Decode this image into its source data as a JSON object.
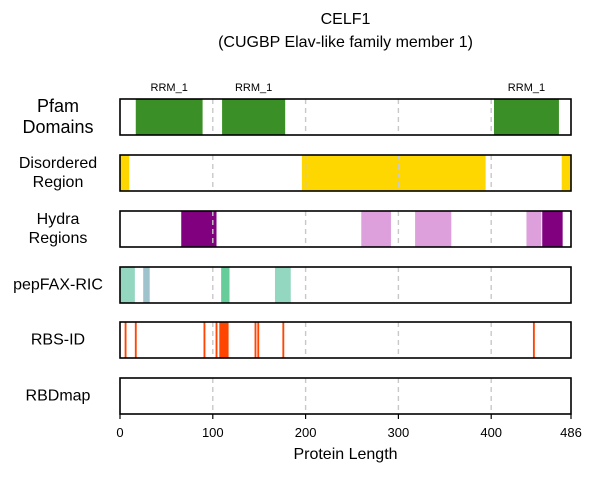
{
  "chart_data": {
    "type": "bar",
    "title": "CELF1",
    "subtitle": "(CUGBP Elav-like family member 1)",
    "xlabel": "Protein Length",
    "xlim": [
      0,
      486
    ],
    "xticks": [
      0,
      100,
      200,
      300,
      400,
      486
    ],
    "xtick_labels": [
      "0",
      "100",
      "200",
      "300",
      "400",
      "486"
    ],
    "grid": "vertical dashed at 100, 200, 300, 400",
    "tracks": [
      {
        "label_lines": [
          "Pfam",
          "Domains"
        ],
        "segments": [
          {
            "start": 17,
            "end": 89,
            "color": "#3a8f26",
            "label": "RRM_1"
          },
          {
            "start": 110,
            "end": 178,
            "color": "#3a8f26",
            "label": "RRM_1"
          },
          {
            "start": 403,
            "end": 473,
            "color": "#3a8f26",
            "label": "RRM_1"
          }
        ]
      },
      {
        "label_lines": [
          "Disordered",
          "Region"
        ],
        "segments": [
          {
            "start": 0,
            "end": 10,
            "color": "#ffd700"
          },
          {
            "start": 196,
            "end": 394,
            "color": "#ffd700"
          },
          {
            "start": 476,
            "end": 486,
            "color": "#ffd700"
          }
        ]
      },
      {
        "label_lines": [
          "Hydra",
          "Regions"
        ],
        "segments": [
          {
            "start": 66,
            "end": 104,
            "color": "#800080"
          },
          {
            "start": 260,
            "end": 292,
            "color": "#dda0dd"
          },
          {
            "start": 318,
            "end": 357,
            "color": "#dda0dd"
          },
          {
            "start": 438,
            "end": 454,
            "color": "#dda0dd"
          },
          {
            "start": 455,
            "end": 477,
            "color": "#800080"
          }
        ]
      },
      {
        "label_lines": [
          "pepFAX-RIC"
        ],
        "segments": [
          {
            "start": 0,
            "end": 16,
            "color": "#93d7c1"
          },
          {
            "start": 25,
            "end": 32,
            "color": "#9ec3cc"
          },
          {
            "start": 109,
            "end": 118,
            "color": "#66cc99"
          },
          {
            "start": 167,
            "end": 184,
            "color": "#93d7c1"
          }
        ]
      },
      {
        "label_lines": [
          "RBS-ID"
        ],
        "segments": [
          {
            "start": 5,
            "end": 7,
            "color": "#ff4500"
          },
          {
            "start": 16,
            "end": 18,
            "color": "#ff4500"
          },
          {
            "start": 90,
            "end": 92,
            "color": "#ff4500"
          },
          {
            "start": 103,
            "end": 105,
            "color": "#ff4500"
          },
          {
            "start": 107,
            "end": 117,
            "color": "#ff4500"
          },
          {
            "start": 145,
            "end": 147,
            "color": "#ff4500"
          },
          {
            "start": 148,
            "end": 150,
            "color": "#ff4500"
          },
          {
            "start": 175,
            "end": 177,
            "color": "#ff4500"
          },
          {
            "start": 445,
            "end": 447,
            "color": "#ff4500"
          }
        ]
      },
      {
        "label_lines": [
          "RBDmap"
        ],
        "segments": []
      }
    ]
  }
}
